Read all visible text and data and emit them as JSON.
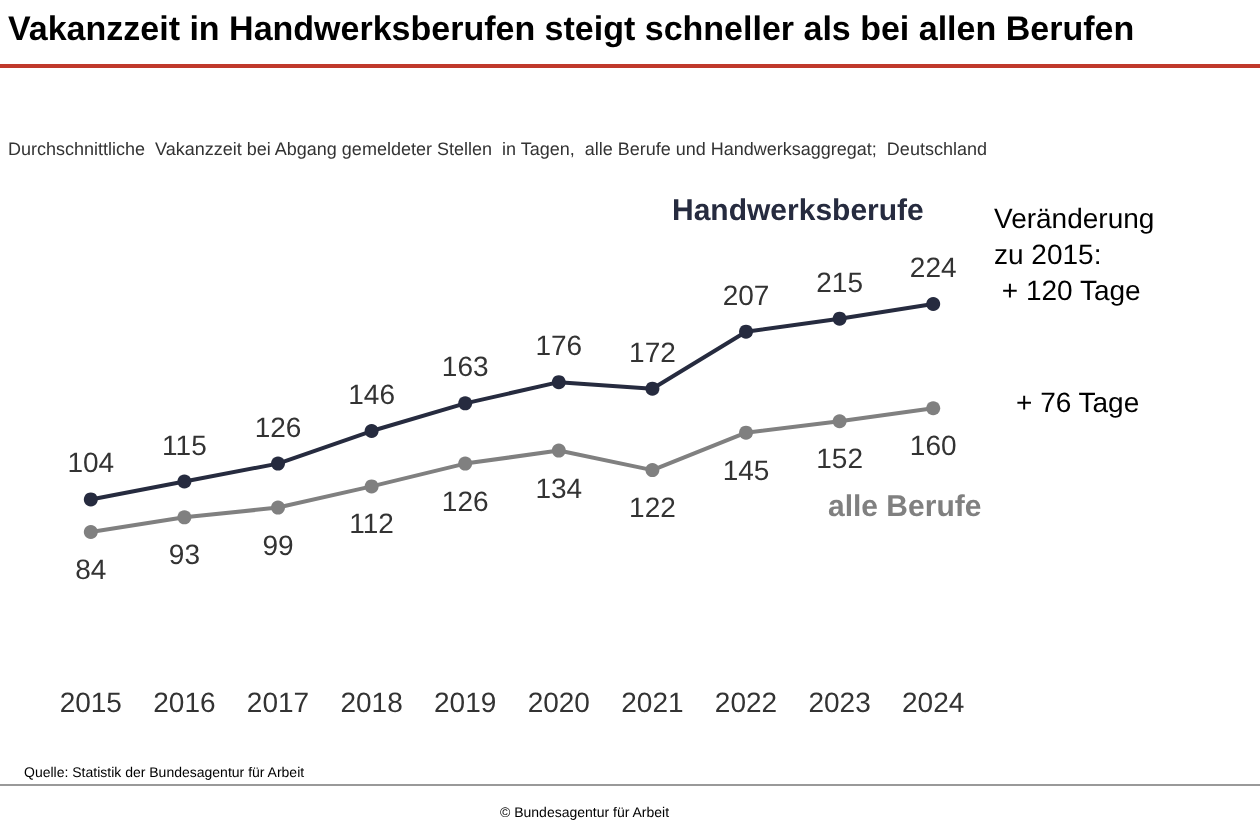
{
  "chart_data": {
    "type": "line",
    "title": "Vakanzzeit in Handwerksberufen steigt schneller als bei allen Berufen",
    "subtitle": "Durchschnittliche  Vakanzzeit bei Abgang gemeldeter Stellen  in Tagen,  alle Berufe und Handwerksaggregat;  Deutschland",
    "categories": [
      "2015",
      "2016",
      "2017",
      "2018",
      "2019",
      "2020",
      "2021",
      "2022",
      "2023",
      "2024"
    ],
    "series": [
      {
        "name": "Handwerksberufe",
        "color": "#262b3f",
        "values": [
          104,
          115,
          126,
          146,
          163,
          176,
          172,
          207,
          215,
          224
        ]
      },
      {
        "name": "alle Berufe",
        "color": "#808080",
        "values": [
          84,
          93,
          99,
          112,
          126,
          134,
          122,
          145,
          152,
          160
        ]
      }
    ],
    "data_labels": true,
    "marker": "circle",
    "line_style": "solid",
    "legend": false,
    "grid": false,
    "annotations": [
      "Veränderung\nzu 2015:\n + 120 Tage",
      "+ 76 Tage",
      "Quelle: Statistik der Bundesagentur für Arbeit",
      "© Bundesagentur für Arbeit"
    ]
  }
}
